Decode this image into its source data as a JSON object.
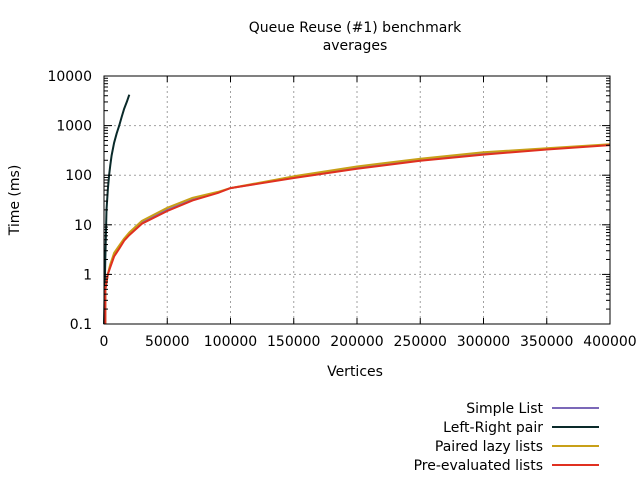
{
  "chart_data": {
    "type": "line",
    "title": "Queue Reuse (#1) benchmark",
    "subtitle": "averages",
    "xlabel": "Vertices",
    "ylabel": "Time (ms)",
    "xlim": [
      0,
      400000
    ],
    "ylim": [
      0.1,
      10000
    ],
    "y_scale": "log",
    "grid": true,
    "legend_position": "bottom-right",
    "x_ticks": [
      0,
      50000,
      100000,
      150000,
      200000,
      250000,
      300000,
      350000,
      400000
    ],
    "x_tick_labels": [
      "0",
      "50000",
      "100000",
      "150000",
      "200000",
      "250000",
      "300000",
      "350000",
      "400000"
    ],
    "y_ticks": [
      0.1,
      1,
      10,
      100,
      1000,
      10000
    ],
    "y_tick_labels": [
      "0.1",
      "1",
      "10",
      "100",
      "1000",
      "10000"
    ],
    "series": [
      {
        "name": "Simple List",
        "color": "#7b68b8",
        "x": [
          1000,
          3000,
          5000,
          8000,
          12000,
          16000,
          20000,
          30000,
          50000,
          70000,
          90000,
          100000,
          150000,
          200000,
          250000,
          300000,
          350000,
          400000
        ],
        "y": [
          0.5,
          1,
          1.5,
          2.5,
          3.5,
          5,
          6.5,
          11,
          20,
          32,
          45,
          55,
          90,
          140,
          200,
          270,
          340,
          410
        ]
      },
      {
        "name": "Left-Right pair",
        "color": "#0a2a2a",
        "x": [
          0,
          1000,
          2000,
          3000,
          4000,
          5000,
          6000,
          8000,
          10000,
          12000,
          14000,
          16000,
          18000,
          20000
        ],
        "y": [
          0.1,
          2,
          20,
          50,
          100,
          160,
          250,
          450,
          700,
          1000,
          1500,
          2200,
          3000,
          4200
        ]
      },
      {
        "name": "Paired lazy lists",
        "color": "#c8a018",
        "x": [
          1000,
          3000,
          5000,
          8000,
          12000,
          16000,
          20000,
          30000,
          50000,
          70000,
          90000,
          100000,
          150000,
          200000,
          250000,
          300000,
          350000,
          400000
        ],
        "y": [
          0.5,
          1,
          1.6,
          2.7,
          3.8,
          5.3,
          7,
          12,
          22,
          35,
          46,
          55,
          95,
          150,
          215,
          290,
          350,
          420
        ]
      },
      {
        "name": "Pre-evaluated lists",
        "color": "#e03020",
        "x": [
          1000,
          3000,
          5000,
          8000,
          12000,
          16000,
          20000,
          30000,
          50000,
          70000,
          90000,
          100000,
          150000,
          200000,
          250000,
          300000,
          350000,
          400000
        ],
        "y": [
          0.5,
          1,
          1.4,
          2.3,
          3.3,
          4.8,
          6.2,
          10.5,
          19,
          31,
          44,
          55,
          88,
          135,
          195,
          260,
          330,
          405
        ]
      }
    ]
  }
}
